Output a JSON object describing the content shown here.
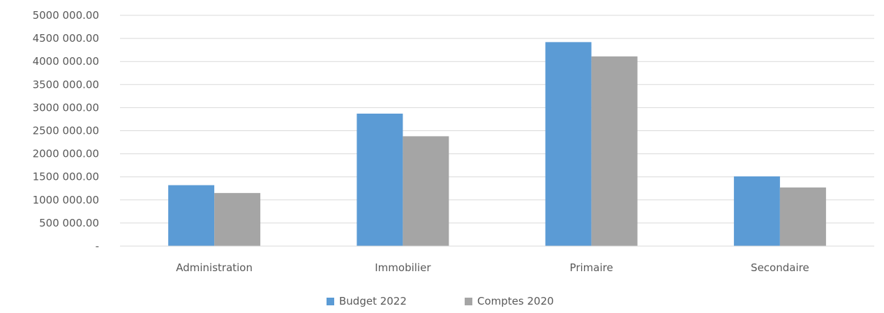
{
  "chart_data": {
    "type": "bar",
    "categories": [
      "Administration",
      "Immobilier",
      "Primaire",
      "Secondaire"
    ],
    "series": [
      {
        "name": "Budget 2022",
        "color": "#5B9BD5",
        "values": [
          1320000,
          2870000,
          4420000,
          1510000
        ]
      },
      {
        "name": "Comptes 2020",
        "color": "#A5A5A5",
        "values": [
          1150000,
          2380000,
          4110000,
          1270000
        ]
      }
    ],
    "ylim": [
      0,
      5000000
    ],
    "yticks": [
      {
        "value": 0,
        "label": "-"
      },
      {
        "value": 500000,
        "label": "500 000.00"
      },
      {
        "value": 1000000,
        "label": "1000 000.00"
      },
      {
        "value": 1500000,
        "label": "1500 000.00"
      },
      {
        "value": 2000000,
        "label": "2000 000.00"
      },
      {
        "value": 2500000,
        "label": "2500 000.00"
      },
      {
        "value": 3000000,
        "label": "3000 000.00"
      },
      {
        "value": 3500000,
        "label": "3500 000.00"
      },
      {
        "value": 4000000,
        "label": "4000 000.00"
      },
      {
        "value": 4500000,
        "label": "4500 000.00"
      },
      {
        "value": 5000000,
        "label": "5000 000.00"
      }
    ],
    "grid": true,
    "legend_position": "bottom",
    "gridline_color": "#D9D9D9"
  }
}
